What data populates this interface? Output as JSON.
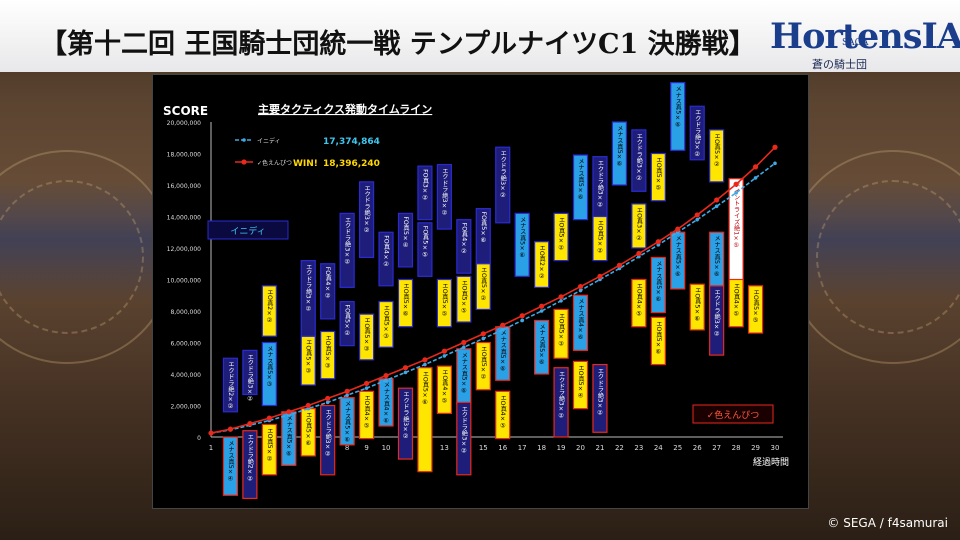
{
  "page_title": "【第十二回 王国騎士団統一戦 テンプルナイツC1 決勝戦】",
  "logo": {
    "main": "HortensIA",
    "saga": "SAGA",
    "sub": "蒼の騎士団"
  },
  "copyright": "© SEGA / f4samurai",
  "chart_data": {
    "type": "line",
    "title": "主要タクティクス発動タイムライン",
    "ylabel": "SCORE",
    "xlabel": "経過時間",
    "x": [
      1,
      2,
      3,
      4,
      5,
      6,
      7,
      8,
      9,
      10,
      11,
      12,
      13,
      14,
      15,
      16,
      17,
      18,
      19,
      20,
      21,
      22,
      23,
      24,
      25,
      26,
      27,
      28,
      29,
      30
    ],
    "ylim": [
      0,
      20000000
    ],
    "y_ticks": [
      "0",
      "2,000,000",
      "4,000,000",
      "6,000,000",
      "8,000,000",
      "10,000,000",
      "12,000,000",
      "14,000,000",
      "16,000,000",
      "18,000,000",
      "20,000,000"
    ],
    "x_ticks": [
      "1",
      "2",
      "3",
      "4",
      "5",
      "6",
      "7",
      "8",
      "9",
      "10",
      "11",
      "12",
      "13",
      "14",
      "15",
      "16",
      "17",
      "18",
      "19",
      "20",
      "21",
      "22",
      "23",
      "24",
      "25",
      "26",
      "27",
      "28",
      "29",
      "30"
    ],
    "series": [
      {
        "name": "イニディ",
        "color": "#3fa9e6",
        "dashed": true,
        "final_score": "17,374,864",
        "values": [
          250000,
          450000,
          750000,
          1050000,
          1400000,
          1800000,
          2200000,
          2650000,
          3100000,
          3600000,
          4100000,
          4600000,
          5150000,
          5700000,
          6250000,
          6800000,
          7400000,
          8000000,
          8650000,
          9300000,
          10000000,
          10700000,
          11450000,
          12200000,
          13000000,
          13800000,
          14650000,
          15500000,
          16450000,
          17374864
        ]
      },
      {
        "name": "色えんぴつ",
        "color": "#e8291c",
        "dashed": false,
        "final_score": "18,396,240",
        "prefix": "✓",
        "win_label": "WIN!",
        "values": [
          250000,
          500000,
          850000,
          1200000,
          1600000,
          2000000,
          2450000,
          2900000,
          3400000,
          3900000,
          4400000,
          4900000,
          5450000,
          6000000,
          6550000,
          7100000,
          7700000,
          8300000,
          8900000,
          9550000,
          10200000,
          10900000,
          11650000,
          12400000,
          13200000,
          14100000,
          15050000,
          16050000,
          17150000,
          18396240
        ]
      }
    ],
    "team_labels": {
      "upper": "イニディ",
      "lower": "✓色えんぴつ"
    },
    "tactic_boxes": [
      {
        "text": "エクドラ絶2×②",
        "team": "upper",
        "fill": "#1e1e7a",
        "x": 2,
        "y_top": 5000000,
        "y_bottom": 1600000
      },
      {
        "text": "エクドラ絶3×②",
        "team": "upper",
        "fill": "#1e1e7a",
        "x": 3,
        "y_top": 5500000,
        "y_bottom": 2700000
      },
      {
        "text": "メナス真5×③",
        "team": "upper",
        "fill": "#2aa0e6",
        "x": 4,
        "y_top": 6000000,
        "y_bottom": 2000000
      },
      {
        "text": "エO真2×②",
        "team": "upper",
        "fill": "#ffe600",
        "x": 4,
        "y_top": 9600000,
        "y_bottom": 6400000
      },
      {
        "text": "エO真5×③",
        "team": "upper",
        "fill": "#ffe600",
        "x": 6,
        "y_top": 6400000,
        "y_bottom": 3300000
      },
      {
        "text": "エクドラ絶3×②",
        "team": "upper",
        "fill": "#1e1e7a",
        "x": 6,
        "y_top": 11200000,
        "y_bottom": 6400000
      },
      {
        "text": "FO真4×②",
        "team": "upper",
        "fill": "#1e1e7a",
        "x": 7,
        "y_top": 11000000,
        "y_bottom": 7500000
      },
      {
        "text": "FO真5×②",
        "team": "upper",
        "fill": "#1e1e7a",
        "x": 8,
        "y_top": 8600000,
        "y_bottom": 5800000
      },
      {
        "text": "エO真5×③",
        "team": "upper",
        "fill": "#ffe600",
        "x": 7,
        "y_top": 6700000,
        "y_bottom": 3700000
      },
      {
        "text": "エクドラ絶3×②",
        "team": "upper",
        "fill": "#1e1e7a",
        "x": 8,
        "y_top": 14200000,
        "y_bottom": 9500000
      },
      {
        "text": "エO真5×③",
        "team": "upper",
        "fill": "#ffe600",
        "x": 9,
        "y_top": 7800000,
        "y_bottom": 4900000
      },
      {
        "text": "エクドラ絶3×②",
        "team": "upper",
        "fill": "#1e1e7a",
        "x": 9,
        "y_top": 16200000,
        "y_bottom": 11400000
      },
      {
        "text": "FO真4×②",
        "team": "upper",
        "fill": "#1e1e7a",
        "x": 10,
        "y_top": 13000000,
        "y_bottom": 9600000
      },
      {
        "text": "エO真5×③",
        "team": "upper",
        "fill": "#ffe600",
        "x": 10,
        "y_top": 8600000,
        "y_bottom": 5700000
      },
      {
        "text": "FO真5×④",
        "team": "upper",
        "fill": "#1e1e7a",
        "x": 11,
        "y_top": 14200000,
        "y_bottom": 10800000
      },
      {
        "text": "エO真5×⑥",
        "team": "upper",
        "fill": "#ffe600",
        "x": 11,
        "y_top": 10000000,
        "y_bottom": 7000000
      },
      {
        "text": "FO真3×②",
        "team": "upper",
        "fill": "#1e1e7a",
        "x": 12,
        "y_top": 17200000,
        "y_bottom": 13800000
      },
      {
        "text": "FO真5×⑤",
        "team": "upper",
        "fill": "#1e1e7a",
        "x": 12,
        "y_top": 13600000,
        "y_bottom": 10200000
      },
      {
        "text": "エクドラ絶3×②",
        "team": "upper",
        "fill": "#1e1e7a",
        "x": 13,
        "y_top": 17300000,
        "y_bottom": 13200000
      },
      {
        "text": "FO真4×②",
        "team": "upper",
        "fill": "#1e1e7a",
        "x": 14,
        "y_top": 13800000,
        "y_bottom": 10400000
      },
      {
        "text": "エO真5×⑤",
        "team": "upper",
        "fill": "#ffe600",
        "x": 13,
        "y_top": 10000000,
        "y_bottom": 7000000
      },
      {
        "text": "エO真5×⑤",
        "team": "upper",
        "fill": "#ffe600",
        "x": 14,
        "y_top": 10200000,
        "y_bottom": 7300000
      },
      {
        "text": "FO真5×⑥",
        "team": "upper",
        "fill": "#1e1e7a",
        "x": 15,
        "y_top": 14500000,
        "y_bottom": 11000000
      },
      {
        "text": "エクドラ絶3×②",
        "team": "upper",
        "fill": "#1e1e7a",
        "x": 16,
        "y_top": 18400000,
        "y_bottom": 13600000
      },
      {
        "text": "エO真5×②",
        "team": "upper",
        "fill": "#ffe600",
        "x": 15,
        "y_top": 11000000,
        "y_bottom": 8100000
      },
      {
        "text": "メナス真5×⑥",
        "team": "upper",
        "fill": "#2aa0e6",
        "x": 17,
        "y_top": 14200000,
        "y_bottom": 10200000
      },
      {
        "text": "エO真2×②",
        "team": "upper",
        "fill": "#ffe600",
        "x": 18,
        "y_top": 12400000,
        "y_bottom": 9500000
      },
      {
        "text": "エO真5×②",
        "team": "upper",
        "fill": "#ffe600",
        "x": 19,
        "y_top": 14200000,
        "y_bottom": 11200000
      },
      {
        "text": "メナス真5×⑥",
        "team": "upper",
        "fill": "#2aa0e6",
        "x": 20,
        "y_top": 17900000,
        "y_bottom": 13800000
      },
      {
        "text": "エクドラ絶3×②",
        "team": "upper",
        "fill": "#1e1e7a",
        "x": 21,
        "y_top": 17800000,
        "y_bottom": 13200000
      },
      {
        "text": "エO真5×②",
        "team": "upper",
        "fill": "#ffe600",
        "x": 21,
        "y_top": 14000000,
        "y_bottom": 11200000
      },
      {
        "text": "メナス真5×⑥",
        "team": "upper",
        "fill": "#2aa0e6",
        "x": 22,
        "y_top": 20000000,
        "y_bottom": 16000000
      },
      {
        "text": "エクドラ絶3×②",
        "team": "upper",
        "fill": "#1e1e7a",
        "x": 23,
        "y_top": 19500000,
        "y_bottom": 15600000
      },
      {
        "text": "エO真3×②",
        "team": "upper",
        "fill": "#ffe600",
        "x": 23,
        "y_top": 14800000,
        "y_bottom": 12000000
      },
      {
        "text": "エO真5×⑤",
        "team": "upper",
        "fill": "#ffe600",
        "x": 24,
        "y_top": 18000000,
        "y_bottom": 15000000
      },
      {
        "text": "メナス真5×⑥",
        "team": "upper",
        "fill": "#2aa0e6",
        "x": 25,
        "y_top": 22500000,
        "y_bottom": 18200000
      },
      {
        "text": "エクドラ絶3×②",
        "team": "upper",
        "fill": "#1e1e7a",
        "x": 26,
        "y_top": 21000000,
        "y_bottom": 17600000
      },
      {
        "text": "エO真5×②",
        "team": "upper",
        "fill": "#ffe600",
        "x": 27,
        "y_top": 19500000,
        "y_bottom": 16200000
      },
      {
        "text": "ポイントライズ絶1×⑤",
        "team": "lower",
        "fill": "#ffffff",
        "x": 28,
        "y_top": 16400000,
        "y_bottom": 9500000
      },
      {
        "text": "メナス真5×④",
        "team": "lower",
        "fill": "#2aa0e6",
        "x": 2,
        "y_top": 0,
        "y_bottom": -3700000
      },
      {
        "text": "エクドラ絶2×②",
        "team": "lower",
        "fill": "#1e1e7a",
        "x": 3,
        "y_top": 400000,
        "y_bottom": -3900000
      },
      {
        "text": "エO真5×②",
        "team": "lower",
        "fill": "#ffe600",
        "x": 4,
        "y_top": 800000,
        "y_bottom": -2400000
      },
      {
        "text": "メナス真5×⑥",
        "team": "lower",
        "fill": "#2aa0e6",
        "x": 5,
        "y_top": 1600000,
        "y_bottom": -1800000
      },
      {
        "text": "エO真5×⑥",
        "team": "lower",
        "fill": "#ffe600",
        "x": 6,
        "y_top": 1800000,
        "y_bottom": -1200000
      },
      {
        "text": "エクドラ絶3×②",
        "team": "lower",
        "fill": "#1e1e7a",
        "x": 7,
        "y_top": 2000000,
        "y_bottom": -2400000
      },
      {
        "text": "メナス真5×⑥",
        "team": "lower",
        "fill": "#2aa0e6",
        "x": 8,
        "y_top": 2500000,
        "y_bottom": -500000
      },
      {
        "text": "エO真4×⑤",
        "team": "lower",
        "fill": "#ffe600",
        "x": 9,
        "y_top": 2900000,
        "y_bottom": -100000
      },
      {
        "text": "メナス真4×⑥",
        "team": "lower",
        "fill": "#2aa0e6",
        "x": 10,
        "y_top": 3700000,
        "y_bottom": 700000
      },
      {
        "text": "エクドラ絶3×②",
        "team": "lower",
        "fill": "#1e1e7a",
        "x": 11,
        "y_top": 3100000,
        "y_bottom": -1400000
      },
      {
        "text": "エO真5×⑥",
        "team": "lower",
        "fill": "#ffe600",
        "x": 12,
        "y_top": 4400000,
        "y_bottom": -2200000
      },
      {
        "text": "エO真4×⑤",
        "team": "lower",
        "fill": "#ffe600",
        "x": 13,
        "y_top": 4500000,
        "y_bottom": 1500000
      },
      {
        "text": "メナス真5×⑥",
        "team": "lower",
        "fill": "#2aa0e6",
        "x": 14,
        "y_top": 5600000,
        "y_bottom": 2100000
      },
      {
        "text": "エクドラ絶3×②",
        "team": "lower",
        "fill": "#1e1e7a",
        "x": 14,
        "y_top": 2200000,
        "y_bottom": -2400000
      },
      {
        "text": "エO真5×②",
        "team": "lower",
        "fill": "#ffe600",
        "x": 15,
        "y_top": 6000000,
        "y_bottom": 3000000
      },
      {
        "text": "メナス真5×⑥",
        "team": "lower",
        "fill": "#2aa0e6",
        "x": 16,
        "y_top": 7000000,
        "y_bottom": 3600000
      },
      {
        "text": "エO真4×⑤",
        "team": "lower",
        "fill": "#ffe600",
        "x": 16,
        "y_top": 2900000,
        "y_bottom": -100000
      },
      {
        "text": "メナス真5×⑥",
        "team": "lower",
        "fill": "#2aa0e6",
        "x": 18,
        "y_top": 7400000,
        "y_bottom": 4000000
      },
      {
        "text": "エO真5×③",
        "team": "lower",
        "fill": "#ffe600",
        "x": 19,
        "y_top": 8100000,
        "y_bottom": 5000000
      },
      {
        "text": "エクドラ絶3×②",
        "team": "lower",
        "fill": "#1e1e7a",
        "x": 19,
        "y_top": 4400000,
        "y_bottom": 0
      },
      {
        "text": "メナス真4×⑥",
        "team": "lower",
        "fill": "#2aa0e6",
        "x": 20,
        "y_top": 9000000,
        "y_bottom": 5500000
      },
      {
        "text": "エO真5×④",
        "team": "lower",
        "fill": "#ffe600",
        "x": 20,
        "y_top": 4800000,
        "y_bottom": 1800000
      },
      {
        "text": "エクドラ絶3×②",
        "team": "lower",
        "fill": "#1e1e7a",
        "x": 21,
        "y_top": 4600000,
        "y_bottom": 300000
      },
      {
        "text": "エO真4×⑤",
        "team": "lower",
        "fill": "#ffe600",
        "x": 23,
        "y_top": 10000000,
        "y_bottom": 7000000
      },
      {
        "text": "メナス真5×⑥",
        "team": "lower",
        "fill": "#2aa0e6",
        "x": 24,
        "y_top": 11400000,
        "y_bottom": 7900000
      },
      {
        "text": "エO真5×⑥",
        "team": "lower",
        "fill": "#ffe600",
        "x": 24,
        "y_top": 7600000,
        "y_bottom": 4600000
      },
      {
        "text": "メナス真5×⑥",
        "team": "lower",
        "fill": "#2aa0e6",
        "x": 25,
        "y_top": 13000000,
        "y_bottom": 9400000
      },
      {
        "text": "エO真5×⑥",
        "team": "lower",
        "fill": "#ffe600",
        "x": 26,
        "y_top": 9700000,
        "y_bottom": 6800000
      },
      {
        "text": "エクドラ絶3×②",
        "team": "lower",
        "fill": "#1e1e7a",
        "x": 27,
        "y_top": 9600000,
        "y_bottom": 5200000
      },
      {
        "text": "メナス真5×⑥",
        "team": "lower",
        "fill": "#2aa0e6",
        "x": 27,
        "y_top": 13000000,
        "y_bottom": 9600000
      },
      {
        "text": "エO真4×⑤",
        "team": "lower",
        "fill": "#ffe600",
        "x": 28,
        "y_top": 10000000,
        "y_bottom": 7000000
      },
      {
        "text": "エO真5×⑤",
        "team": "lower",
        "fill": "#ffe600",
        "x": 29,
        "y_top": 9600000,
        "y_bottom": 6600000
      }
    ],
    "grid": false,
    "legend_position": "top-left",
    "background": "#000000"
  }
}
